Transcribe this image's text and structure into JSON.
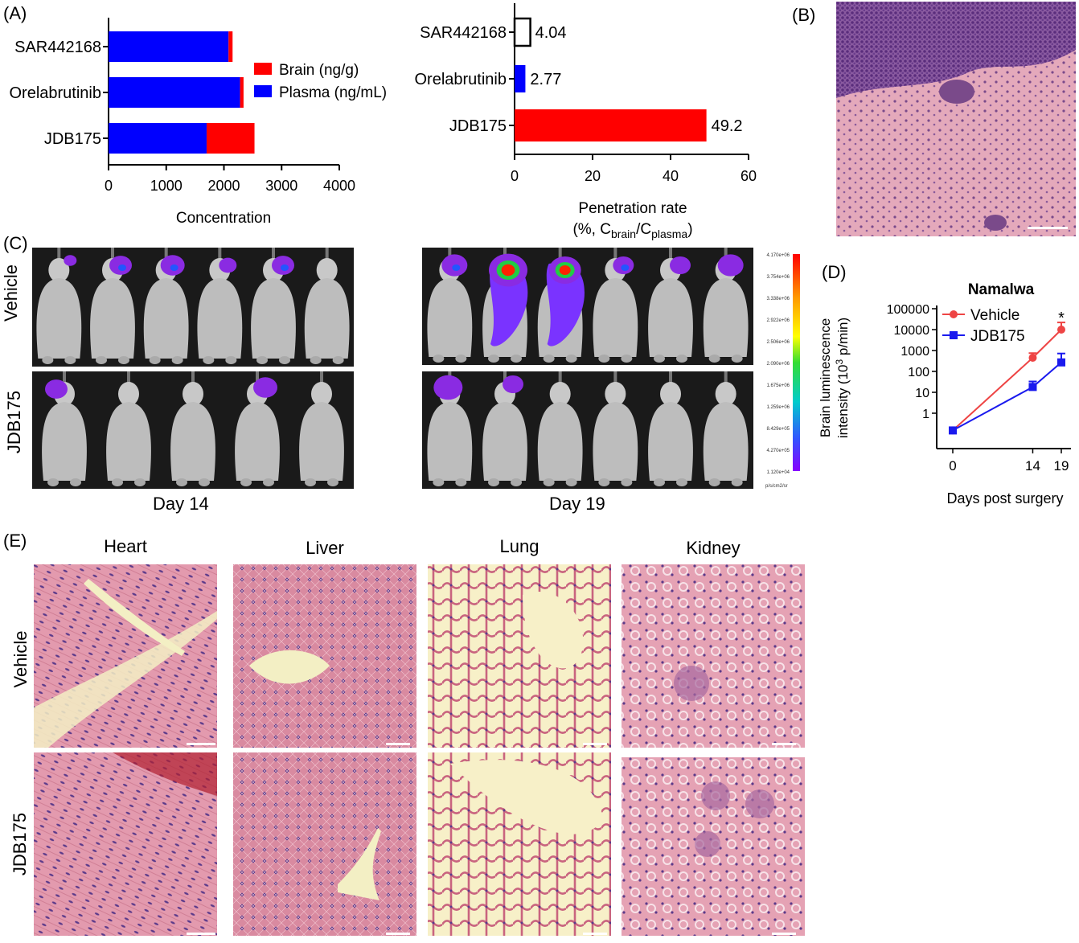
{
  "panel_labels": {
    "A": "(A)",
    "B": "(B)",
    "C": "(C)",
    "D": "(D)",
    "E": "(E)"
  },
  "colors": {
    "brain": "#ff0000",
    "plasma": "#0000ff",
    "vehicle": "#ee4444",
    "jdb175": "#1a1aee",
    "he_pink": "#e8a8b8",
    "he_purple": "#6a3d8c"
  },
  "chart_data": [
    {
      "type": "bar",
      "orientation": "horizontal-stacked",
      "categories": [
        "SAR442168",
        "Orelabrutinib",
        "JDB175"
      ],
      "series": [
        {
          "name": "Plasma (ng/mL)",
          "values": [
            2080,
            2280,
            1700
          ]
        },
        {
          "name": "Brain (ng/g)",
          "values": [
            70,
            60,
            830
          ]
        }
      ],
      "xlabel": "Concentration",
      "xlim": [
        0,
        4000
      ],
      "xticks": [
        "0",
        "1000",
        "2000",
        "3000",
        "4000"
      ],
      "legend": "right"
    },
    {
      "type": "bar",
      "orientation": "horizontal",
      "categories": [
        "SAR442168",
        "Orelabrutinib",
        "JDB175"
      ],
      "values": [
        4.04,
        2.77,
        49.2
      ],
      "value_labels": [
        "4.04",
        "2.77",
        "49.2"
      ],
      "bar_colors": [
        "#ffffff",
        "#0000ff",
        "#ff0000"
      ],
      "xlabel_line1": "Penetration rate",
      "xlabel_line2_prefix": "(%, C",
      "xlabel_sub1": "brain",
      "xlabel_mid": "/C",
      "xlabel_sub2": "plasma",
      "xlabel_suffix": ")",
      "xlim": [
        0,
        60
      ],
      "xticks": [
        "0",
        "20",
        "40",
        "60"
      ]
    },
    {
      "type": "line",
      "title": "Namalwa",
      "x": [
        0,
        14,
        19
      ],
      "xticks": [
        "0",
        "14",
        "19"
      ],
      "xlabel": "Days post surgery",
      "ylabel_prefix": "Brain luminescence",
      "ylabel_line2": "intensity (10",
      "ylabel_sup": "3",
      "ylabel_suffix": " p/min)",
      "yscale": "log",
      "yticks": [
        "100000",
        "10000",
        "1000",
        "100",
        "10",
        "1"
      ],
      "ylim": [
        0.1,
        100000
      ],
      "series": [
        {
          "name": "Vehicle",
          "values": [
            0.15,
            450,
            10000
          ],
          "err": [
            0,
            300,
            12000
          ]
        },
        {
          "name": "JDB175",
          "values": [
            0.15,
            18,
            270
          ],
          "err": [
            0,
            15,
            450
          ]
        }
      ],
      "annotation": "*",
      "legend": "top-left"
    }
  ],
  "panel_c": {
    "row_labels": [
      "Vehicle",
      "JDB175"
    ],
    "day_labels": [
      "Day 14",
      "Day 19"
    ],
    "colorbar_ticks": [
      "4.170e+06",
      "3.754e+06",
      "3.338e+06",
      "2.922e+06",
      "2.506e+06",
      "2.090e+06",
      "1.675e+06",
      "1.259e+06",
      "8.429e+05",
      "4.270e+05",
      "1.120e+04"
    ],
    "colorbar_unit": "p/s/cm2/sr"
  },
  "panel_e": {
    "columns": [
      "Heart",
      "Liver",
      "Lung",
      "Kidney"
    ],
    "rows": [
      "Vehicle",
      "JDB175"
    ]
  }
}
